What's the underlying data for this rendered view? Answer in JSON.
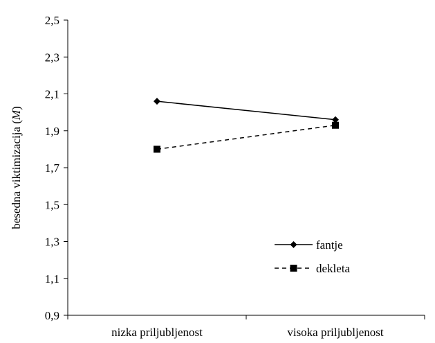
{
  "chart_data": {
    "type": "line",
    "categories": [
      "nizka priljubljenost",
      "visoka priljubljenost"
    ],
    "ylabel_prefix": "besedna viktimizacija (",
    "ylabel_italic": "M",
    "ylabel_suffix": ")",
    "ylim": [
      0.9,
      2.5
    ],
    "yticks": [
      0.9,
      1.1,
      1.3,
      1.5,
      1.7,
      1.9,
      2.1,
      2.3,
      2.5
    ],
    "ytick_labels": [
      "0,9",
      "1,1",
      "1,3",
      "1,5",
      "1,7",
      "1,9",
      "2,1",
      "2,3",
      "2,5"
    ],
    "grid": false,
    "legend_position": "right",
    "series": [
      {
        "name": "fantje",
        "values": [
          2.06,
          1.96
        ],
        "line_style": "solid",
        "marker": "diamond",
        "color": "#000000"
      },
      {
        "name": "dekleta",
        "values": [
          1.8,
          1.93
        ],
        "line_style": "dashed",
        "marker": "square",
        "color": "#000000"
      }
    ]
  }
}
